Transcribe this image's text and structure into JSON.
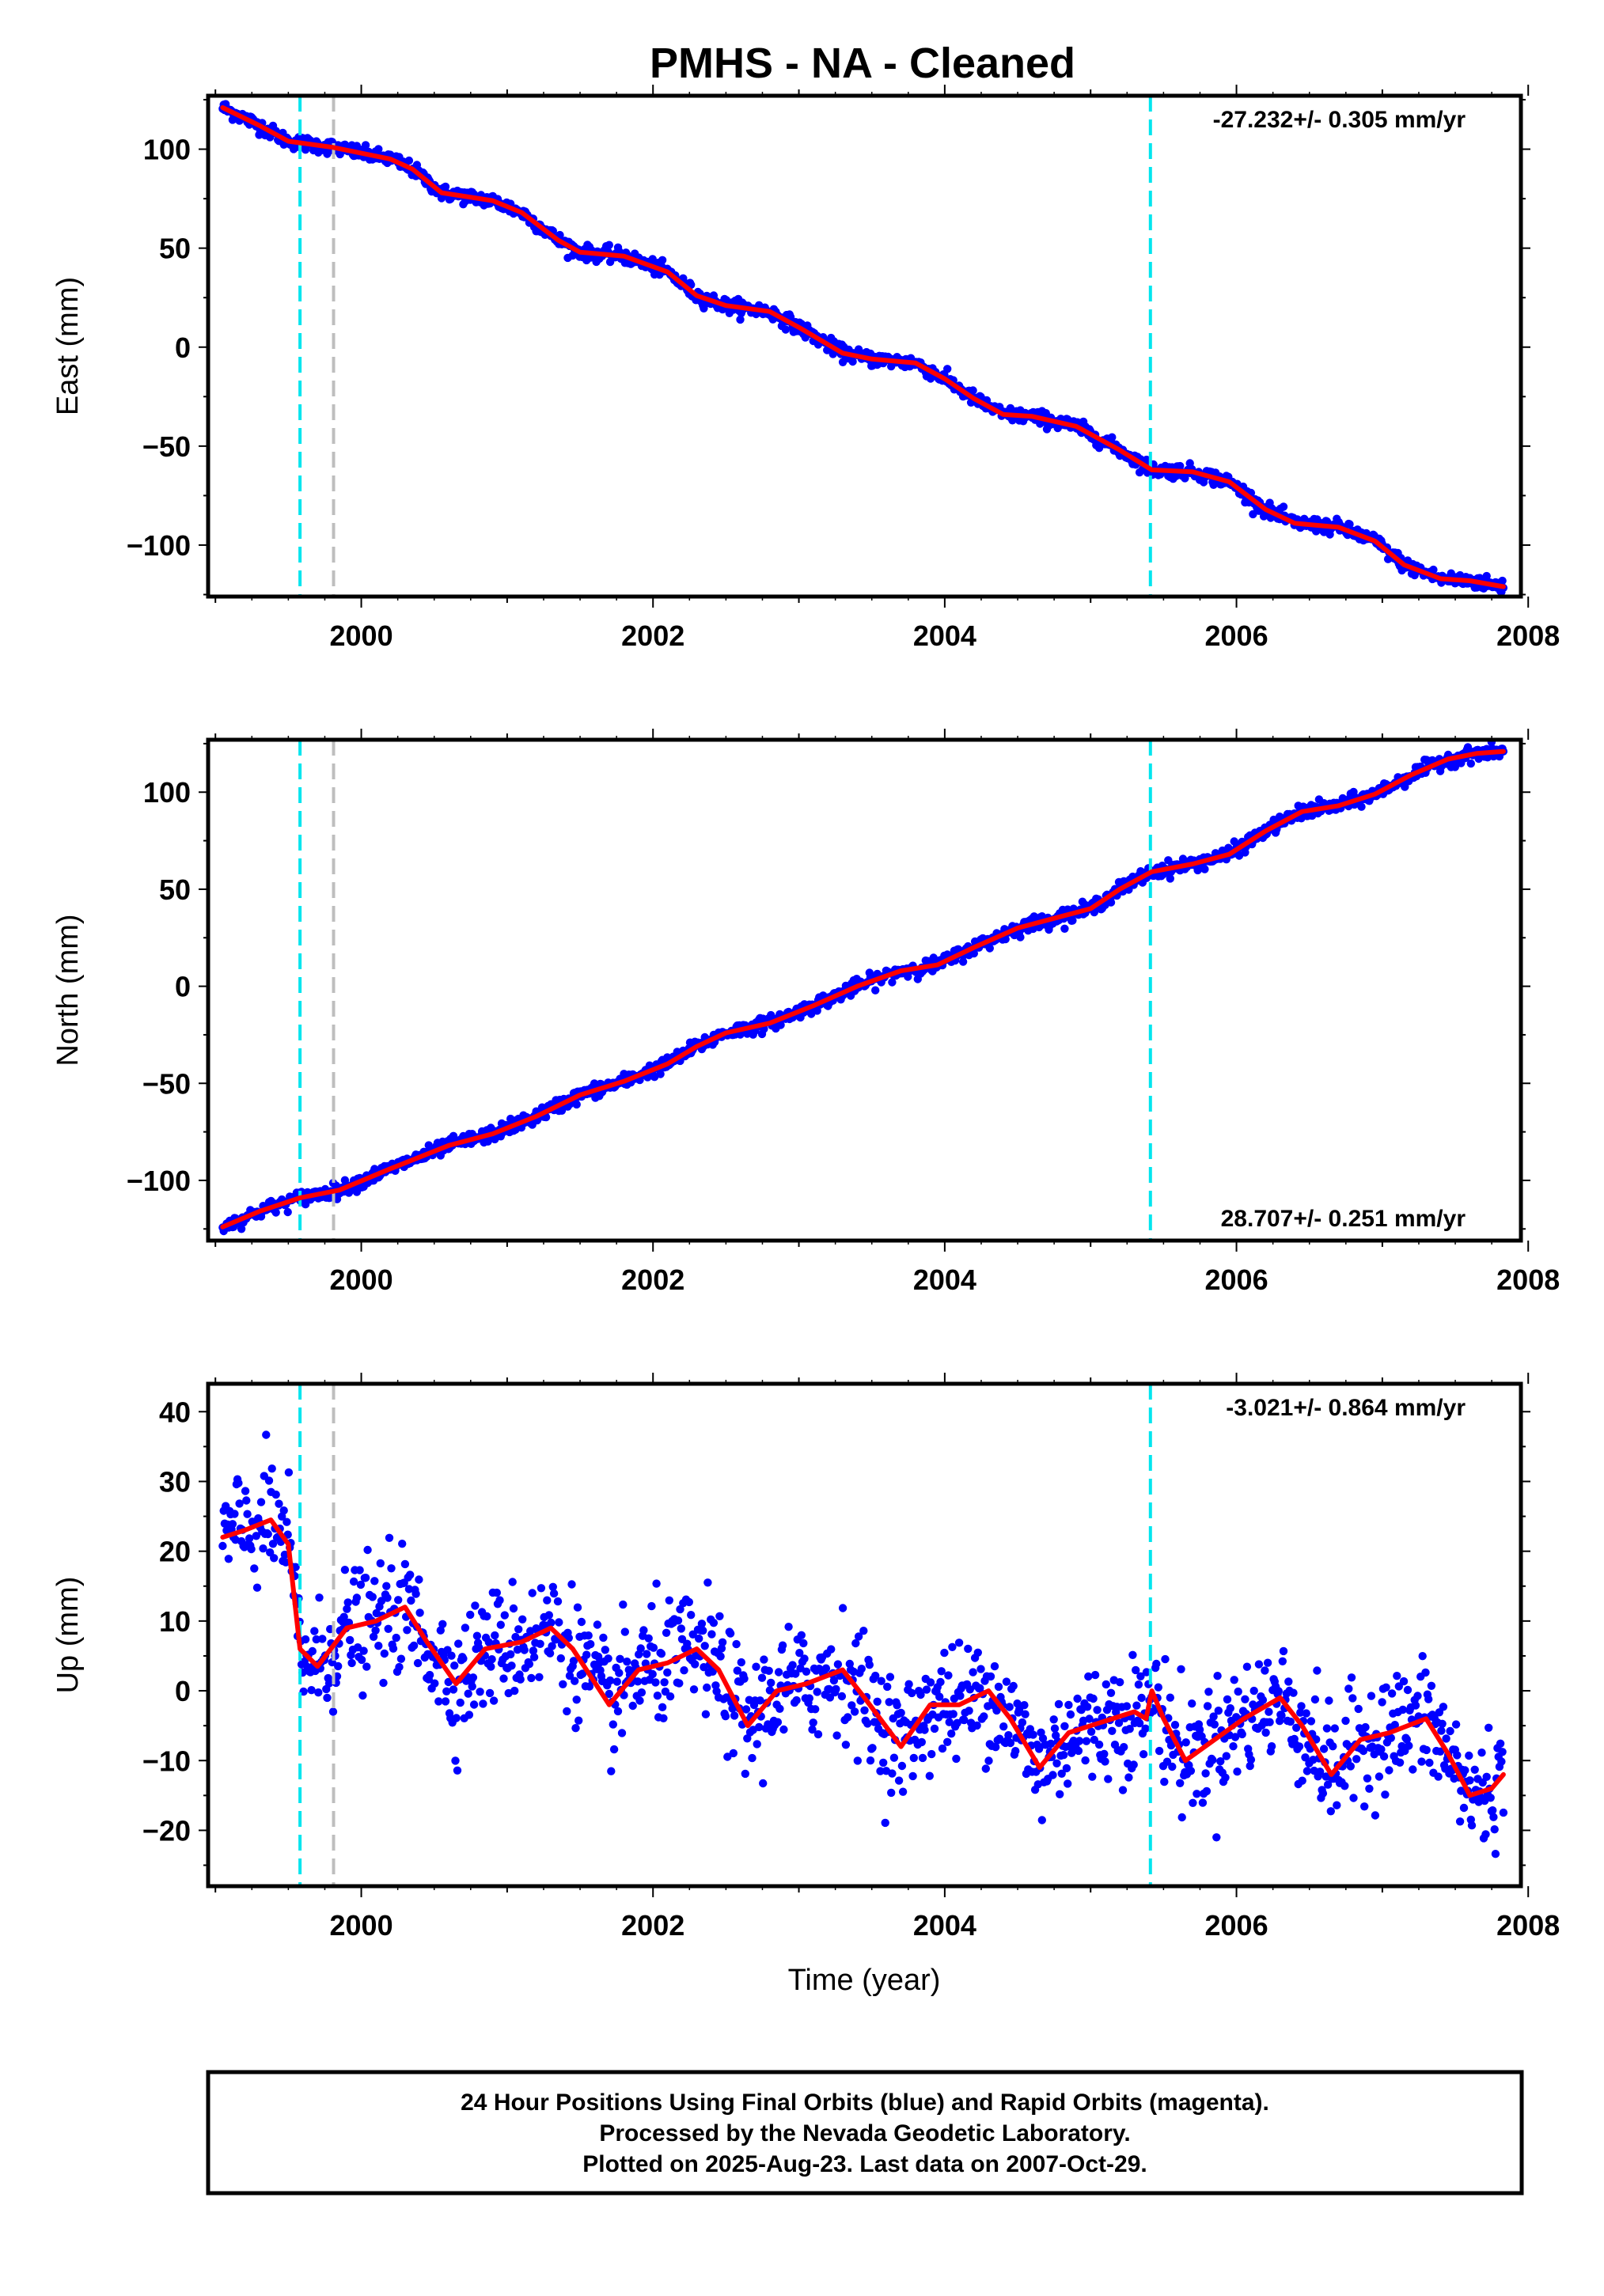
{
  "title": "PMHS  - NA - Cleaned",
  "xlabel": "Time (year)",
  "xticks": [
    "2000",
    "2002",
    "2004",
    "2006",
    "2008"
  ],
  "footer": [
    "24 Hour Positions Using Final Orbits (blue) and Rapid Orbits (magenta).",
    "Processed by the Nevada Geodetic Laboratory.",
    "Plotted on 2025-Aug-23. Last data on 2007-Oct-29."
  ],
  "colors": {
    "points": "#0000ff",
    "fit": "#ff0000",
    "cyan_line": "#00e5ee",
    "gray_line": "#bebebe",
    "frame": "#000000"
  },
  "chart_data": [
    {
      "type": "scatter",
      "id": "east",
      "ylabel": "East (mm)",
      "rate": "-27.232+/- 0.305 mm/yr",
      "rate_position": "top-right",
      "xlim": [
        1998.95,
        2007.95
      ],
      "ylim": [
        -126,
        127
      ],
      "yticks": [
        -100,
        -50,
        0,
        50,
        100
      ],
      "ytick_labels": [
        "−100",
        "−50",
        "0",
        "50",
        "100"
      ],
      "noise": 1.8,
      "fit": [
        [
          1999.05,
          121
        ],
        [
          1999.3,
          112
        ],
        [
          1999.5,
          104
        ],
        [
          1999.8,
          101
        ],
        [
          2000.2,
          95
        ],
        [
          2000.35,
          90
        ],
        [
          2000.55,
          78
        ],
        [
          2000.9,
          74
        ],
        [
          2001.1,
          68
        ],
        [
          2001.35,
          54
        ],
        [
          2001.5,
          48
        ],
        [
          2001.8,
          46
        ],
        [
          2002.1,
          38
        ],
        [
          2002.3,
          26
        ],
        [
          2002.5,
          21
        ],
        [
          2002.8,
          18
        ],
        [
          2003.0,
          10
        ],
        [
          2003.3,
          -3
        ],
        [
          2003.5,
          -6
        ],
        [
          2003.8,
          -8
        ],
        [
          2004.0,
          -16
        ],
        [
          2004.2,
          -26
        ],
        [
          2004.4,
          -34
        ],
        [
          2004.6,
          -35
        ],
        [
          2004.9,
          -40
        ],
        [
          2005.2,
          -52
        ],
        [
          2005.42,
          -62
        ],
        [
          2005.7,
          -63
        ],
        [
          2005.95,
          -68
        ],
        [
          2006.2,
          -82
        ],
        [
          2006.4,
          -89
        ],
        [
          2006.7,
          -91
        ],
        [
          2006.95,
          -98
        ],
        [
          2007.15,
          -110
        ],
        [
          2007.4,
          -117
        ],
        [
          2007.6,
          -118
        ],
        [
          2007.83,
          -121
        ]
      ],
      "event_lines": [
        {
          "x": 1999.58,
          "color": "cyan"
        },
        {
          "x": 1999.81,
          "color": "gray"
        },
        {
          "x": 2005.41,
          "color": "cyan"
        }
      ]
    },
    {
      "type": "scatter",
      "id": "north",
      "ylabel": "North (mm)",
      "rate": "28.707+/- 0.251 mm/yr",
      "rate_position": "bottom-right",
      "xlim": [
        1998.95,
        2007.95
      ],
      "ylim": [
        -131,
        127
      ],
      "yticks": [
        -100,
        -50,
        0,
        50,
        100
      ],
      "ytick_labels": [
        "−100",
        "−50",
        "0",
        "50",
        "100"
      ],
      "noise": 1.8,
      "fit": [
        [
          1999.05,
          -124
        ],
        [
          1999.3,
          -116
        ],
        [
          1999.58,
          -109
        ],
        [
          1999.85,
          -105
        ],
        [
          2000.2,
          -94
        ],
        [
          2000.6,
          -82
        ],
        [
          2000.9,
          -76
        ],
        [
          2001.2,
          -67
        ],
        [
          2001.5,
          -56
        ],
        [
          2001.8,
          -49
        ],
        [
          2002.1,
          -40
        ],
        [
          2002.3,
          -31
        ],
        [
          2002.5,
          -24
        ],
        [
          2002.8,
          -19
        ],
        [
          2003.1,
          -10
        ],
        [
          2003.4,
          0
        ],
        [
          2003.7,
          8
        ],
        [
          2003.95,
          11
        ],
        [
          2004.2,
          20
        ],
        [
          2004.5,
          30
        ],
        [
          2004.75,
          35
        ],
        [
          2005.0,
          40
        ],
        [
          2005.2,
          50
        ],
        [
          2005.42,
          59
        ],
        [
          2005.7,
          63
        ],
        [
          2005.95,
          68
        ],
        [
          2006.2,
          80
        ],
        [
          2006.45,
          90
        ],
        [
          2006.7,
          93
        ],
        [
          2006.95,
          99
        ],
        [
          2007.2,
          109
        ],
        [
          2007.45,
          117
        ],
        [
          2007.65,
          120
        ],
        [
          2007.83,
          121
        ]
      ],
      "event_lines": [
        {
          "x": 1999.58,
          "color": "cyan"
        },
        {
          "x": 1999.81,
          "color": "gray"
        },
        {
          "x": 2005.41,
          "color": "cyan"
        }
      ]
    },
    {
      "type": "scatter",
      "id": "up",
      "ylabel": "Up (mm)",
      "rate": "-3.021+/- 0.864 mm/yr",
      "rate_position": "top-right",
      "xlim": [
        1998.95,
        2007.95
      ],
      "ylim": [
        -28,
        44
      ],
      "yticks": [
        -20,
        -10,
        0,
        10,
        20,
        30,
        40
      ],
      "ytick_labels": [
        "−20",
        "−10",
        "0",
        "10",
        "20",
        "30",
        "40"
      ],
      "noise": 4.2,
      "fit": [
        [
          1999.05,
          22
        ],
        [
          1999.2,
          23
        ],
        [
          1999.38,
          24.5
        ],
        [
          1999.5,
          21
        ],
        [
          1999.58,
          6
        ],
        [
          1999.7,
          3.5
        ],
        [
          1999.9,
          9
        ],
        [
          2000.1,
          10
        ],
        [
          2000.3,
          12
        ],
        [
          2000.45,
          7
        ],
        [
          2000.65,
          1
        ],
        [
          2000.85,
          6
        ],
        [
          2001.1,
          7
        ],
        [
          2001.3,
          9
        ],
        [
          2001.45,
          6
        ],
        [
          2001.7,
          -2
        ],
        [
          2001.9,
          3
        ],
        [
          2002.1,
          4
        ],
        [
          2002.3,
          6
        ],
        [
          2002.45,
          3
        ],
        [
          2002.65,
          -5
        ],
        [
          2002.85,
          0
        ],
        [
          2003.05,
          1
        ],
        [
          2003.3,
          3
        ],
        [
          2003.45,
          -1
        ],
        [
          2003.7,
          -8
        ],
        [
          2003.9,
          -2
        ],
        [
          2004.1,
          -2
        ],
        [
          2004.3,
          0
        ],
        [
          2004.45,
          -4
        ],
        [
          2004.65,
          -11
        ],
        [
          2004.85,
          -6
        ],
        [
          2005.0,
          -5
        ],
        [
          2005.3,
          -3
        ],
        [
          2005.38,
          -4
        ],
        [
          2005.42,
          0
        ],
        [
          2005.5,
          -4
        ],
        [
          2005.65,
          -10
        ],
        [
          2005.85,
          -7
        ],
        [
          2006.05,
          -4
        ],
        [
          2006.3,
          -1
        ],
        [
          2006.45,
          -5
        ],
        [
          2006.65,
          -12
        ],
        [
          2006.85,
          -7
        ],
        [
          2007.05,
          -6
        ],
        [
          2007.3,
          -4
        ],
        [
          2007.45,
          -9
        ],
        [
          2007.6,
          -15
        ],
        [
          2007.75,
          -14
        ],
        [
          2007.83,
          -12
        ]
      ],
      "event_lines": [
        {
          "x": 1999.58,
          "color": "cyan"
        },
        {
          "x": 1999.81,
          "color": "gray"
        },
        {
          "x": 2005.41,
          "color": "cyan"
        }
      ]
    }
  ]
}
